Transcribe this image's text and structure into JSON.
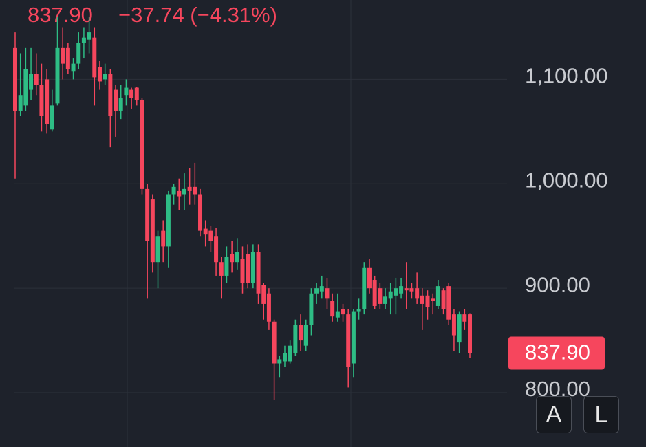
{
  "header": {
    "price": "837.90",
    "change": "−37.74 (−4.31%)"
  },
  "chart_data": {
    "type": "candlestick",
    "up_color": "#2ebd85",
    "down_color": "#f6465d",
    "open": [
      1130,
      1070,
      1075,
      1090,
      1105,
      1095,
      1100,
      1052,
      1077,
      1130,
      1130,
      1108,
      1115,
      1135,
      1138,
      1140,
      1112,
      1100,
      1105,
      1090,
      1070,
      1085,
      1090,
      1092,
      1080,
      995,
      985,
      925,
      955,
      940,
      990,
      993,
      990,
      997,
      997,
      990,
      957,
      955,
      950,
      925,
      912,
      933,
      925,
      928,
      933,
      905,
      935,
      903,
      895,
      868,
      828,
      830,
      830,
      838,
      865,
      845,
      865,
      895,
      897,
      900,
      888,
      872,
      880,
      875,
      828,
      878,
      880,
      920,
      908,
      900,
      885,
      890,
      893,
      895,
      900,
      900,
      900,
      893,
      893,
      890,
      883,
      898,
      902,
      875,
      848,
      875,
      875
    ],
    "high": [
      1145,
      1125,
      1130,
      1130,
      1125,
      1115,
      1110,
      1090,
      1160,
      1150,
      1135,
      1120,
      1145,
      1150,
      1160,
      1150,
      1118,
      1115,
      1110,
      1095,
      1095,
      1100,
      1092,
      1093,
      1082,
      1000,
      990,
      955,
      965,
      993,
      1000,
      1005,
      1010,
      1015,
      1020,
      995,
      965,
      960,
      958,
      930,
      940,
      945,
      948,
      940,
      942,
      942,
      942,
      905,
      900,
      870,
      835,
      845,
      850,
      870,
      875,
      870,
      900,
      905,
      912,
      910,
      895,
      895,
      885,
      880,
      880,
      890,
      925,
      928,
      912,
      905,
      900,
      905,
      910,
      910,
      925,
      905,
      915,
      900,
      898,
      895,
      908,
      900,
      905,
      880,
      878,
      880,
      876
    ],
    "low": [
      1005,
      1065,
      1070,
      1080,
      1085,
      1050,
      1048,
      1050,
      1075,
      1100,
      1105,
      1100,
      1110,
      1120,
      1125,
      1075,
      1090,
      1095,
      1035,
      1045,
      1062,
      1075,
      1072,
      1075,
      990,
      890,
      915,
      900,
      925,
      920,
      980,
      975,
      975,
      980,
      980,
      950,
      940,
      935,
      912,
      890,
      905,
      915,
      918,
      895,
      900,
      900,
      885,
      870,
      860,
      793,
      815,
      825,
      828,
      835,
      840,
      840,
      855,
      885,
      890,
      880,
      868,
      868,
      868,
      805,
      815,
      870,
      875,
      895,
      880,
      880,
      880,
      875,
      875,
      890,
      880,
      890,
      885,
      860,
      870,
      875,
      880,
      875,
      865,
      840,
      838,
      860,
      833
    ],
    "close": [
      1070,
      1085,
      1110,
      1105,
      1095,
      1065,
      1057,
      1075,
      1130,
      1115,
      1110,
      1115,
      1135,
      1140,
      1145,
      1102,
      1098,
      1105,
      1065,
      1070,
      1082,
      1092,
      1082,
      1080,
      995,
      945,
      925,
      950,
      940,
      990,
      997,
      988,
      995,
      993,
      990,
      955,
      952,
      945,
      925,
      912,
      930,
      925,
      935,
      905,
      905,
      935,
      895,
      885,
      868,
      828,
      832,
      838,
      845,
      865,
      850,
      865,
      895,
      900,
      902,
      890,
      873,
      878,
      875,
      825,
      878,
      880,
      920,
      900,
      883,
      885,
      892,
      897,
      900,
      902,
      898,
      897,
      890,
      885,
      882,
      888,
      902,
      880,
      870,
      855,
      875,
      868,
      837.9
    ],
    "last_price": {
      "value": 837.9,
      "label": "837.90"
    },
    "ylim": [
      748,
      1176
    ],
    "yticks": [
      {
        "value": 800,
        "label": "800.00"
      },
      {
        "value": 900,
        "label": "900.00"
      },
      {
        "value": 1000,
        "label": "1,000.00"
      },
      {
        "value": 1100,
        "label": "1,100.00"
      }
    ],
    "grid": true
  }
}
